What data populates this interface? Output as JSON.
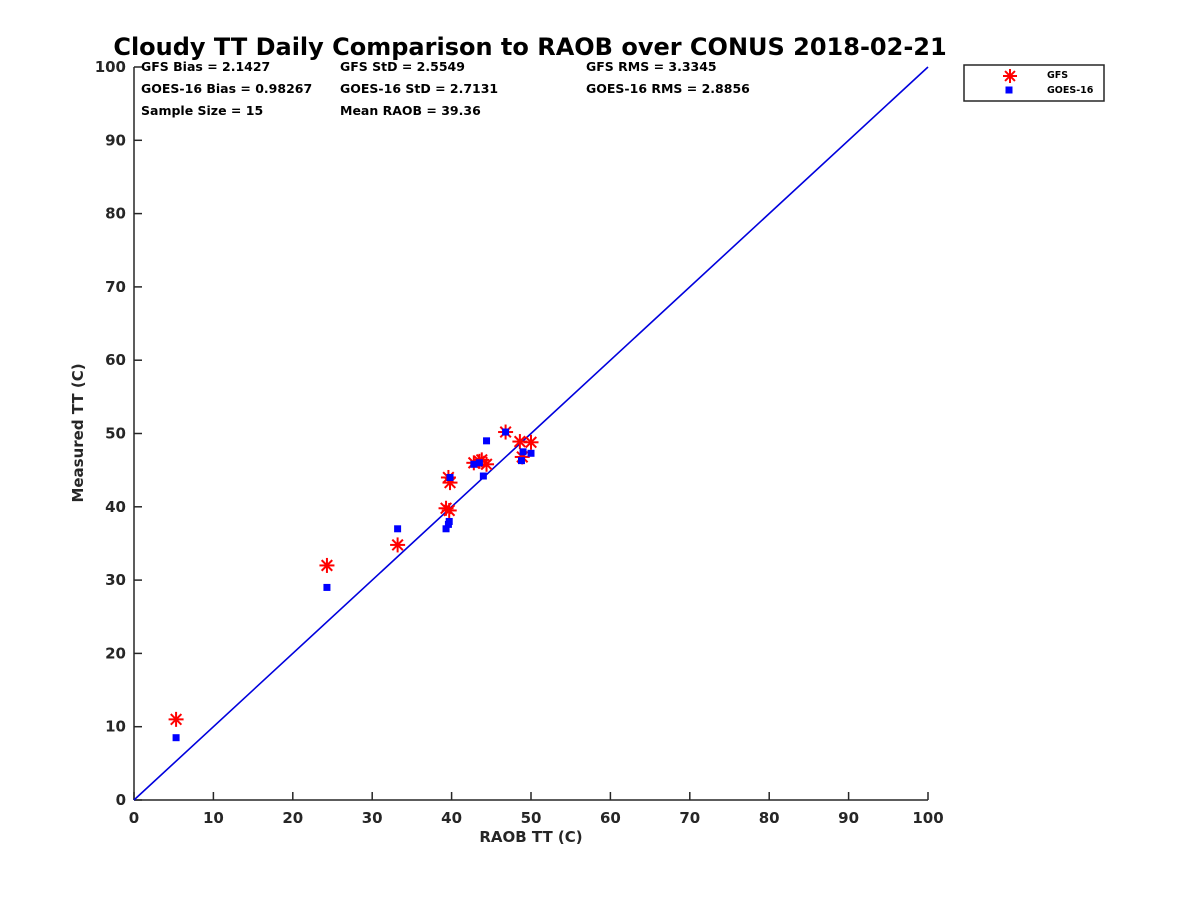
{
  "chart_data": {
    "type": "scatter",
    "title": "Cloudy TT Daily Comparison to RAOB over CONUS 2018-02-21",
    "xlabel": "RAOB TT (C)",
    "ylabel": "Measured TT (C)",
    "xlim": [
      0,
      100
    ],
    "ylim": [
      0,
      100
    ],
    "xticks": [
      "0",
      "10",
      "20",
      "30",
      "40",
      "50",
      "60",
      "70",
      "80",
      "90",
      "100"
    ],
    "yticks": [
      "0",
      "10",
      "20",
      "30",
      "40",
      "50",
      "60",
      "70",
      "80",
      "90",
      "100"
    ],
    "grid": false,
    "legend_position": "outside top-right",
    "reference_line": {
      "from": [
        0,
        0
      ],
      "to": [
        100,
        100
      ],
      "color": "#0000dd"
    },
    "stats": [
      [
        "GFS Bias = 2.1427",
        "GFS StD = 2.5549",
        "GFS RMS = 3.3345"
      ],
      [
        "GOES-16 Bias = 0.98267",
        "GOES-16 StD = 2.7131",
        "GOES-16 RMS = 2.8856"
      ],
      [
        "Sample Size = 15",
        "Mean RAOB = 39.36",
        ""
      ]
    ],
    "series": [
      {
        "name": "GFS",
        "marker": "asterisk",
        "color": "#ff0000",
        "points": [
          [
            5.3,
            11.0
          ],
          [
            24.3,
            32.0
          ],
          [
            33.2,
            34.8
          ],
          [
            39.3,
            39.8
          ],
          [
            39.7,
            39.5
          ],
          [
            39.6,
            44.0
          ],
          [
            39.8,
            43.3
          ],
          [
            42.8,
            46.0
          ],
          [
            43.8,
            46.4
          ],
          [
            44.4,
            45.8
          ],
          [
            46.8,
            50.2
          ],
          [
            48.6,
            48.9
          ],
          [
            48.9,
            46.8
          ],
          [
            50.0,
            48.8
          ],
          [
            43.5,
            46.2
          ]
        ]
      },
      {
        "name": "GOES-16",
        "marker": "square",
        "color": "#0000ff",
        "points": [
          [
            5.3,
            8.5
          ],
          [
            24.3,
            29.0
          ],
          [
            33.2,
            37.0
          ],
          [
            39.3,
            37.0
          ],
          [
            39.6,
            37.6
          ],
          [
            39.7,
            38.0
          ],
          [
            39.8,
            44.0
          ],
          [
            42.8,
            45.8
          ],
          [
            43.5,
            46.0
          ],
          [
            44.0,
            44.2
          ],
          [
            44.4,
            49.0
          ],
          [
            46.8,
            50.2
          ],
          [
            48.8,
            46.3
          ],
          [
            49.0,
            47.5
          ],
          [
            50.0,
            47.3
          ]
        ]
      }
    ]
  }
}
